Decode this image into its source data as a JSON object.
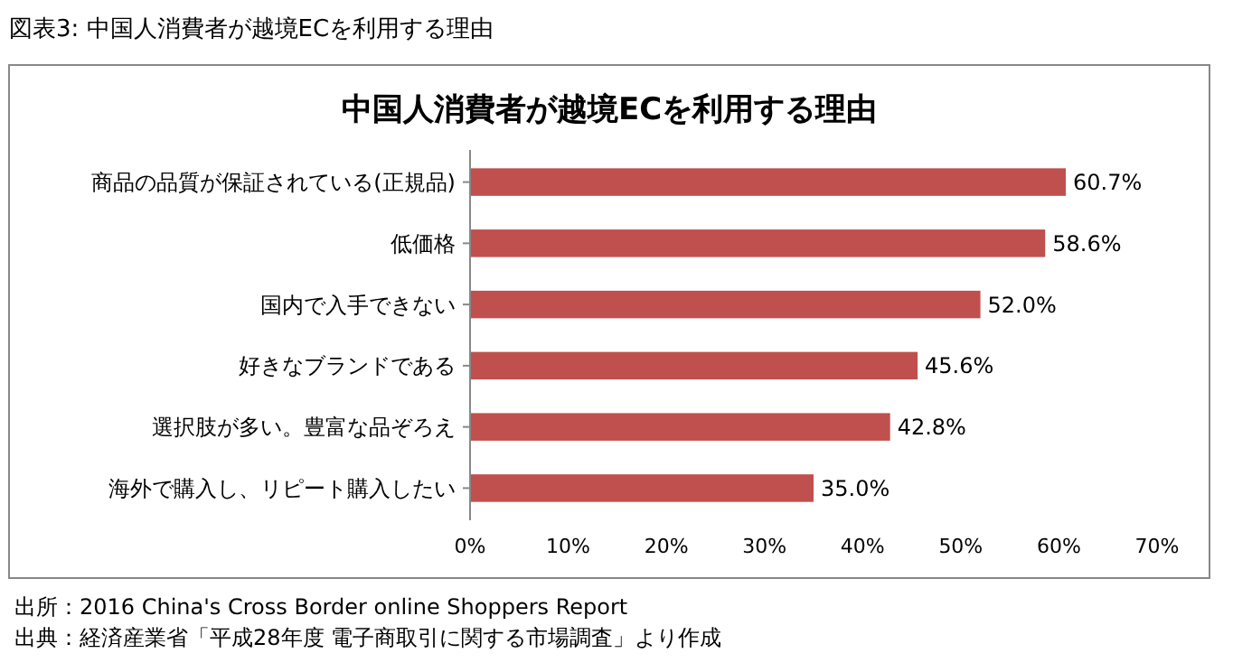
{
  "chart_data": {
    "type": "bar",
    "orientation": "horizontal",
    "title": "中国人消費者が越境ECを利用する理由",
    "categories": [
      "商品の品質が保証されている(正規品)",
      "低価格",
      "国内で入手できない",
      "好きなブランドである",
      "選択肢が多い。豊富な品ぞろえ",
      "海外で購入し、リピート購入したい"
    ],
    "values": [
      60.7,
      58.6,
      52.0,
      45.6,
      42.8,
      35.0
    ],
    "value_labels": [
      "60.7%",
      "58.6%",
      "52.0%",
      "45.6%",
      "42.8%",
      "35.0%"
    ],
    "color": "#c0504d",
    "xlim": [
      0,
      70
    ],
    "xticks": [
      {
        "value": 0,
        "label": "0%"
      },
      {
        "value": 10,
        "label": "10%"
      },
      {
        "value": 20,
        "label": "20%"
      },
      {
        "value": 30,
        "label": "30%"
      },
      {
        "value": 40,
        "label": "40%"
      },
      {
        "value": 50,
        "label": "50%"
      },
      {
        "value": 60,
        "label": "60%"
      },
      {
        "value": 70,
        "label": "70%"
      }
    ],
    "annotations": [
      "図表3: 中国人消費者が越境ECを利用する理由",
      "出所：2016 China's Cross Border online Shoppers Report",
      "出典：経済産業省「平成28年度 電子商取引に関する市場調査」より作成"
    ]
  }
}
